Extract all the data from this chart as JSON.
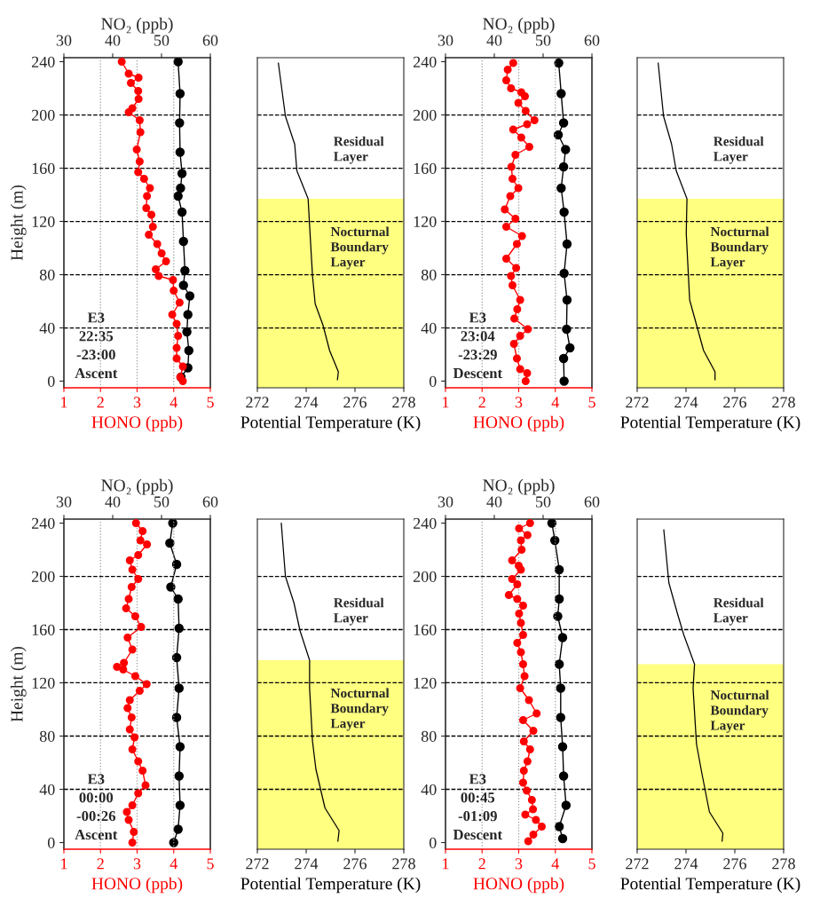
{
  "chart_data": [
    {
      "type": "line",
      "xlabel": "HONO (ppb)",
      "x2label": "NO₂ (ppb)",
      "ylabel": "Height (m)",
      "xlim": [
        1,
        5
      ],
      "xticks": [
        1,
        2,
        3,
        4,
        5
      ],
      "x2lim": [
        30,
        60
      ],
      "x2ticks": [
        30,
        40,
        50,
        60
      ],
      "ylim": [
        -5,
        243
      ],
      "yticks": [
        0,
        40,
        80,
        120,
        160,
        200,
        240
      ],
      "grid": "x",
      "marker": "circle",
      "ref_lines": [
        {
          "axis": "y",
          "value": 40,
          "color": "#000000",
          "line_style": "dashed"
        },
        {
          "axis": "y",
          "value": 80,
          "color": "#000000",
          "line_style": "dashed"
        },
        {
          "axis": "y",
          "value": 120,
          "color": "#000000",
          "line_style": "dashed"
        },
        {
          "axis": "y",
          "value": 160,
          "color": "#000000",
          "line_style": "dashed"
        },
        {
          "axis": "y",
          "value": 200,
          "color": "#000000",
          "line_style": "dashed"
        }
      ],
      "annotations": [
        "E3\n22:35\n-23:00\nAscent"
      ],
      "series": [
        {
          "color": "#ff0000",
          "x": [
            2.58,
            2.77,
            3.04,
            2.83,
            3.03,
            3.04,
            2.87,
            2.77,
            3.07,
            3.09,
            2.99,
            3.07,
            3.03,
            3.19,
            3.35,
            3.27,
            3.25,
            3.39,
            3.43,
            3.32,
            3.55,
            3.67,
            3.79,
            3.51,
            3.59,
            3.98,
            4.0,
            4.16,
            3.96,
            4.08,
            4.12,
            4.08,
            4.08,
            4.25,
            4.18,
            4.25
          ],
          "values": [
            240,
            231,
            228,
            224,
            218,
            212,
            205,
            202,
            196,
            187,
            174,
            165,
            157,
            152,
            145,
            139,
            130,
            125,
            116,
            110,
            103,
            96,
            90,
            84,
            79,
            76,
            68,
            59,
            50,
            43,
            34,
            25,
            17,
            11,
            3,
            0
          ]
        },
        {
          "color": "#000000",
          "axis": "x2",
          "x": [
            53.4,
            53.8,
            53.7,
            53.8,
            54.2,
            53.9,
            53.4,
            54.2,
            54.5,
            54.8,
            54.5,
            55.8,
            55.4,
            55.2,
            55.6,
            55.4,
            54.0
          ],
          "values": [
            240,
            216,
            194,
            172,
            156,
            145,
            139,
            127,
            105,
            83,
            72,
            64,
            50,
            37,
            23,
            10,
            3
          ]
        }
      ]
    },
    {
      "type": "line",
      "xlabel": "Potential Temperature (K)",
      "xlim": [
        272,
        278
      ],
      "xticks": [
        272,
        274,
        276,
        278
      ],
      "ylim": [
        -5,
        243
      ],
      "yticks": [
        0,
        40,
        80,
        120,
        160,
        200,
        240
      ],
      "tick_labels": "x",
      "bands": [
        {
          "axis": "y",
          "from": -5,
          "to": 137,
          "label": "Nocturnal\nBoundary\nLayer",
          "color": "#ffff80"
        }
      ],
      "ref_lines": [
        {
          "axis": "y",
          "value": 40,
          "color": "#000000",
          "line_style": "dashed"
        },
        {
          "axis": "y",
          "value": 80,
          "color": "#000000",
          "line_style": "dashed"
        },
        {
          "axis": "y",
          "value": 120,
          "color": "#000000",
          "line_style": "dashed"
        },
        {
          "axis": "y",
          "value": 160,
          "color": "#000000",
          "line_style": "dashed"
        },
        {
          "axis": "y",
          "value": 200,
          "color": "#000000",
          "line_style": "dashed"
        }
      ],
      "annotations": [
        "Residual\nLayer"
      ],
      "series": [
        {
          "color": "#000000",
          "x": [
            272.86,
            273.15,
            273.53,
            273.62,
            274.08,
            274.14,
            274.26,
            274.37,
            274.69,
            274.96,
            275.32,
            275.28
          ],
          "values": [
            239,
            199,
            178,
            158,
            137,
            117,
            79,
            58,
            42,
            23,
            7,
            1
          ]
        }
      ]
    },
    {
      "type": "line",
      "xlabel": "HONO (ppb)",
      "x2label": "NO₂ (ppb)",
      "xlim": [
        1,
        5
      ],
      "xticks": [
        1,
        2,
        3,
        4,
        5
      ],
      "x2lim": [
        30,
        60
      ],
      "x2ticks": [
        30,
        40,
        50,
        60
      ],
      "ylim": [
        -5,
        243
      ],
      "yticks": [
        0,
        40,
        80,
        120,
        160,
        200,
        240
      ],
      "grid": "x",
      "marker": "circle",
      "ref_lines": [
        {
          "axis": "y",
          "value": 40,
          "color": "#000000",
          "line_style": "dashed"
        },
        {
          "axis": "y",
          "value": 80,
          "color": "#000000",
          "line_style": "dashed"
        },
        {
          "axis": "y",
          "value": 120,
          "color": "#000000",
          "line_style": "dashed"
        },
        {
          "axis": "y",
          "value": 160,
          "color": "#000000",
          "line_style": "dashed"
        },
        {
          "axis": "y",
          "value": 200,
          "color": "#000000",
          "line_style": "dashed"
        }
      ],
      "annotations": [
        "E3\n23:04\n-23:29\nDescent"
      ],
      "series": [
        {
          "color": "#ff0000",
          "x": [
            2.85,
            2.7,
            2.66,
            2.79,
            3.07,
            3.17,
            2.99,
            3.19,
            3.43,
            3.23,
            2.85,
            3.07,
            3.29,
            2.91,
            2.8,
            2.83,
            2.99,
            2.77,
            2.62,
            2.91,
            2.66,
            3.09,
            2.95,
            2.66,
            2.93,
            2.79,
            2.83,
            3.04,
            2.96,
            2.88,
            3.25,
            3.04,
            2.87,
            2.95,
            3.04,
            3.23,
            3.19
          ],
          "values": [
            239,
            234,
            226,
            220,
            217,
            214,
            209,
            203,
            196,
            193,
            189,
            183,
            176,
            170,
            161,
            152,
            145,
            139,
            129,
            122,
            116,
            109,
            103,
            92,
            85,
            79,
            72,
            61,
            54,
            47,
            39,
            34,
            28,
            17,
            9,
            6,
            0
          ]
        },
        {
          "color": "#000000",
          "axis": "x2",
          "x": [
            53.2,
            53.7,
            54.2,
            53.1,
            54.6,
            54.2,
            53.7,
            54.3,
            54.9,
            54.3,
            54.9,
            54.8,
            55.5,
            54.2,
            54.3
          ],
          "values": [
            239,
            216,
            194,
            185,
            174,
            161,
            145,
            127,
            103,
            81,
            61,
            39,
            25,
            17,
            0
          ]
        }
      ]
    },
    {
      "type": "line",
      "xlabel": "Potential Temperature (K)",
      "xlim": [
        272,
        278
      ],
      "xticks": [
        272,
        274,
        276,
        278
      ],
      "ylim": [
        -5,
        243
      ],
      "yticks": [
        0,
        40,
        80,
        120,
        160,
        200,
        240
      ],
      "tick_labels": "x",
      "bands": [
        {
          "axis": "y",
          "from": -5,
          "to": 137,
          "label": "Nocturnal\nBoundary\nLayer",
          "color": "#ffff80"
        }
      ],
      "ref_lines": [
        {
          "axis": "y",
          "value": 40,
          "color": "#000000",
          "line_style": "dashed"
        },
        {
          "axis": "y",
          "value": 80,
          "color": "#000000",
          "line_style": "dashed"
        },
        {
          "axis": "y",
          "value": 120,
          "color": "#000000",
          "line_style": "dashed"
        },
        {
          "axis": "y",
          "value": 160,
          "color": "#000000",
          "line_style": "dashed"
        },
        {
          "axis": "y",
          "value": 200,
          "color": "#000000",
          "line_style": "dashed"
        }
      ],
      "annotations": [
        "Residual\nLayer"
      ],
      "series": [
        {
          "color": "#000000",
          "x": [
            272.86,
            273.08,
            273.41,
            273.6,
            274.04,
            274.01,
            274.15,
            274.72,
            275.19,
            275.19
          ],
          "values": [
            239,
            199,
            178,
            158,
            137,
            111,
            61,
            23,
            7,
            1
          ]
        }
      ]
    },
    {
      "type": "line",
      "xlabel": "HONO (ppb)",
      "x2label": "NO₂ (ppb)",
      "ylabel": "Height (m)",
      "xlim": [
        1,
        5
      ],
      "xticks": [
        1,
        2,
        3,
        4,
        5
      ],
      "x2lim": [
        30,
        60
      ],
      "x2ticks": [
        30,
        40,
        50,
        60
      ],
      "ylim": [
        -5,
        243
      ],
      "yticks": [
        0,
        40,
        80,
        120,
        160,
        200,
        240
      ],
      "grid": "x",
      "marker": "circle",
      "ref_lines": [
        {
          "axis": "y",
          "value": 40,
          "color": "#000000",
          "line_style": "dashed"
        },
        {
          "axis": "y",
          "value": 80,
          "color": "#000000",
          "line_style": "dashed"
        },
        {
          "axis": "y",
          "value": 120,
          "color": "#000000",
          "line_style": "dashed"
        },
        {
          "axis": "y",
          "value": 160,
          "color": "#000000",
          "line_style": "dashed"
        },
        {
          "axis": "y",
          "value": 200,
          "color": "#000000",
          "line_style": "dashed"
        }
      ],
      "annotations": [
        "E3\n00:00\n-00:26\nAscent"
      ],
      "series": [
        {
          "color": "#ff0000",
          "x": [
            2.97,
            3.15,
            3.09,
            3.27,
            3.03,
            2.8,
            2.87,
            3.03,
            2.85,
            2.77,
            2.7,
            2.95,
            3.11,
            2.74,
            2.87,
            2.64,
            2.45,
            2.62,
            2.95,
            3.26,
            3.07,
            2.8,
            2.74,
            2.85,
            2.8,
            2.93,
            2.87,
            3.03,
            3.15,
            3.23,
            3.03,
            2.87,
            2.72,
            2.77,
            2.91,
            2.87
          ],
          "values": [
            240,
            234,
            227,
            224,
            216,
            212,
            205,
            198,
            192,
            183,
            176,
            170,
            162,
            154,
            145,
            135,
            132,
            130,
            125,
            119,
            114,
            107,
            101,
            94,
            85,
            79,
            70,
            61,
            54,
            43,
            37,
            28,
            23,
            17,
            8,
            0
          ]
        },
        {
          "color": "#000000",
          "axis": "x2",
          "x": [
            52.3,
            51.7,
            53.1,
            51.9,
            53.4,
            53.6,
            53.1,
            53.6,
            53.1,
            53.8,
            53.6,
            53.8,
            53.4,
            52.5
          ],
          "values": [
            240,
            225,
            209,
            192,
            183,
            161,
            139,
            116,
            94,
            72,
            50,
            28,
            10,
            0
          ]
        }
      ]
    },
    {
      "type": "line",
      "xlabel": "Potential Temperature (K)",
      "xlim": [
        272,
        278
      ],
      "xticks": [
        272,
        274,
        276,
        278
      ],
      "ylim": [
        -5,
        243
      ],
      "yticks": [
        0,
        40,
        80,
        120,
        160,
        200,
        240
      ],
      "tick_labels": "x",
      "bands": [
        {
          "axis": "y",
          "from": -5,
          "to": 137,
          "label": "Nocturnal\nBoundary\nLayer",
          "color": "#ffff80"
        }
      ],
      "ref_lines": [
        {
          "axis": "y",
          "value": 40,
          "color": "#000000",
          "line_style": "dashed"
        },
        {
          "axis": "y",
          "value": 80,
          "color": "#000000",
          "line_style": "dashed"
        },
        {
          "axis": "y",
          "value": 120,
          "color": "#000000",
          "line_style": "dashed"
        },
        {
          "axis": "y",
          "value": 160,
          "color": "#000000",
          "line_style": "dashed"
        },
        {
          "axis": "y",
          "value": 200,
          "color": "#000000",
          "line_style": "dashed"
        }
      ],
      "annotations": [
        "Residual\nLayer"
      ],
      "series": [
        {
          "color": "#000000",
          "x": [
            272.98,
            273.15,
            273.5,
            273.75,
            274.14,
            274.14,
            274.26,
            274.4,
            274.77,
            275.35,
            275.3
          ],
          "values": [
            240,
            200,
            180,
            159,
            137,
            116,
            76,
            55,
            26,
            9,
            1
          ]
        }
      ]
    },
    {
      "type": "line",
      "xlabel": "HONO (ppb)",
      "x2label": "NO₂ (ppb)",
      "xlim": [
        1,
        5
      ],
      "xticks": [
        1,
        2,
        3,
        4,
        5
      ],
      "x2lim": [
        30,
        60
      ],
      "x2ticks": [
        30,
        40,
        50,
        60
      ],
      "ylim": [
        -5,
        243
      ],
      "yticks": [
        0,
        40,
        80,
        120,
        160,
        200,
        240
      ],
      "grid": "x",
      "marker": "circle",
      "ref_lines": [
        {
          "axis": "y",
          "value": 40,
          "color": "#000000",
          "line_style": "dashed"
        },
        {
          "axis": "y",
          "value": 80,
          "color": "#000000",
          "line_style": "dashed"
        },
        {
          "axis": "y",
          "value": 120,
          "color": "#000000",
          "line_style": "dashed"
        },
        {
          "axis": "y",
          "value": 160,
          "color": "#000000",
          "line_style": "dashed"
        },
        {
          "axis": "y",
          "value": 200,
          "color": "#000000",
          "line_style": "dashed"
        }
      ],
      "annotations": [
        "E3\n00:45\n-01:09\nDescent"
      ],
      "series": [
        {
          "color": "#ff0000",
          "x": [
            3.31,
            3.01,
            3.24,
            3.06,
            3.08,
            2.82,
            3.0,
            3.06,
            2.82,
            2.96,
            2.73,
            2.96,
            3.12,
            3.01,
            3.06,
            3.12,
            2.96,
            3.06,
            3.12,
            3.16,
            3.04,
            3.28,
            3.49,
            3.12,
            3.4,
            3.14,
            3.31,
            3.24,
            3.14,
            3.12,
            3.22,
            3.36,
            3.39,
            3.18,
            3.47,
            3.63,
            3.4,
            3.26
          ],
          "values": [
            240,
            236,
            231,
            227,
            220,
            212,
            208,
            205,
            198,
            194,
            186,
            183,
            178,
            172,
            165,
            156,
            150,
            143,
            134,
            125,
            116,
            107,
            97,
            92,
            84,
            76,
            70,
            61,
            54,
            45,
            39,
            32,
            25,
            21,
            17,
            12,
            6,
            1
          ]
        },
        {
          "color": "#000000",
          "axis": "x2",
          "x": [
            51.8,
            52.4,
            53.3,
            53.3,
            53.0,
            54.0,
            53.3,
            53.6,
            53.6,
            54.0,
            54.2,
            54.7,
            53.3,
            54.0
          ],
          "values": [
            240,
            227,
            205,
            183,
            170,
            154,
            134,
            116,
            94,
            72,
            50,
            28,
            12,
            3
          ]
        }
      ]
    },
    {
      "type": "line",
      "xlabel": "Potential Temperature (K)",
      "xlim": [
        272,
        278
      ],
      "xticks": [
        272,
        274,
        276,
        278
      ],
      "ylim": [
        -5,
        243
      ],
      "yticks": [
        0,
        40,
        80,
        120,
        160,
        200,
        240
      ],
      "tick_labels": "x",
      "bands": [
        {
          "axis": "y",
          "from": -5,
          "to": 134,
          "label": "Nocturnal\nBoundary\nLayer",
          "color": "#ffff80"
        }
      ],
      "ref_lines": [
        {
          "axis": "y",
          "value": 40,
          "color": "#000000",
          "line_style": "dashed"
        },
        {
          "axis": "y",
          "value": 80,
          "color": "#000000",
          "line_style": "dashed"
        },
        {
          "axis": "y",
          "value": 120,
          "color": "#000000",
          "line_style": "dashed"
        },
        {
          "axis": "y",
          "value": 160,
          "color": "#000000",
          "line_style": "dashed"
        },
        {
          "axis": "y",
          "value": 200,
          "color": "#000000",
          "line_style": "dashed"
        }
      ],
      "annotations": [
        "Residual\nLayer"
      ],
      "series": [
        {
          "color": "#000000",
          "x": [
            273.09,
            273.3,
            273.65,
            273.91,
            274.35,
            274.29,
            274.43,
            274.64,
            274.96,
            275.51,
            275.48
          ],
          "values": [
            235,
            195,
            172,
            156,
            134,
            116,
            74,
            53,
            23,
            7,
            1
          ]
        }
      ]
    }
  ]
}
